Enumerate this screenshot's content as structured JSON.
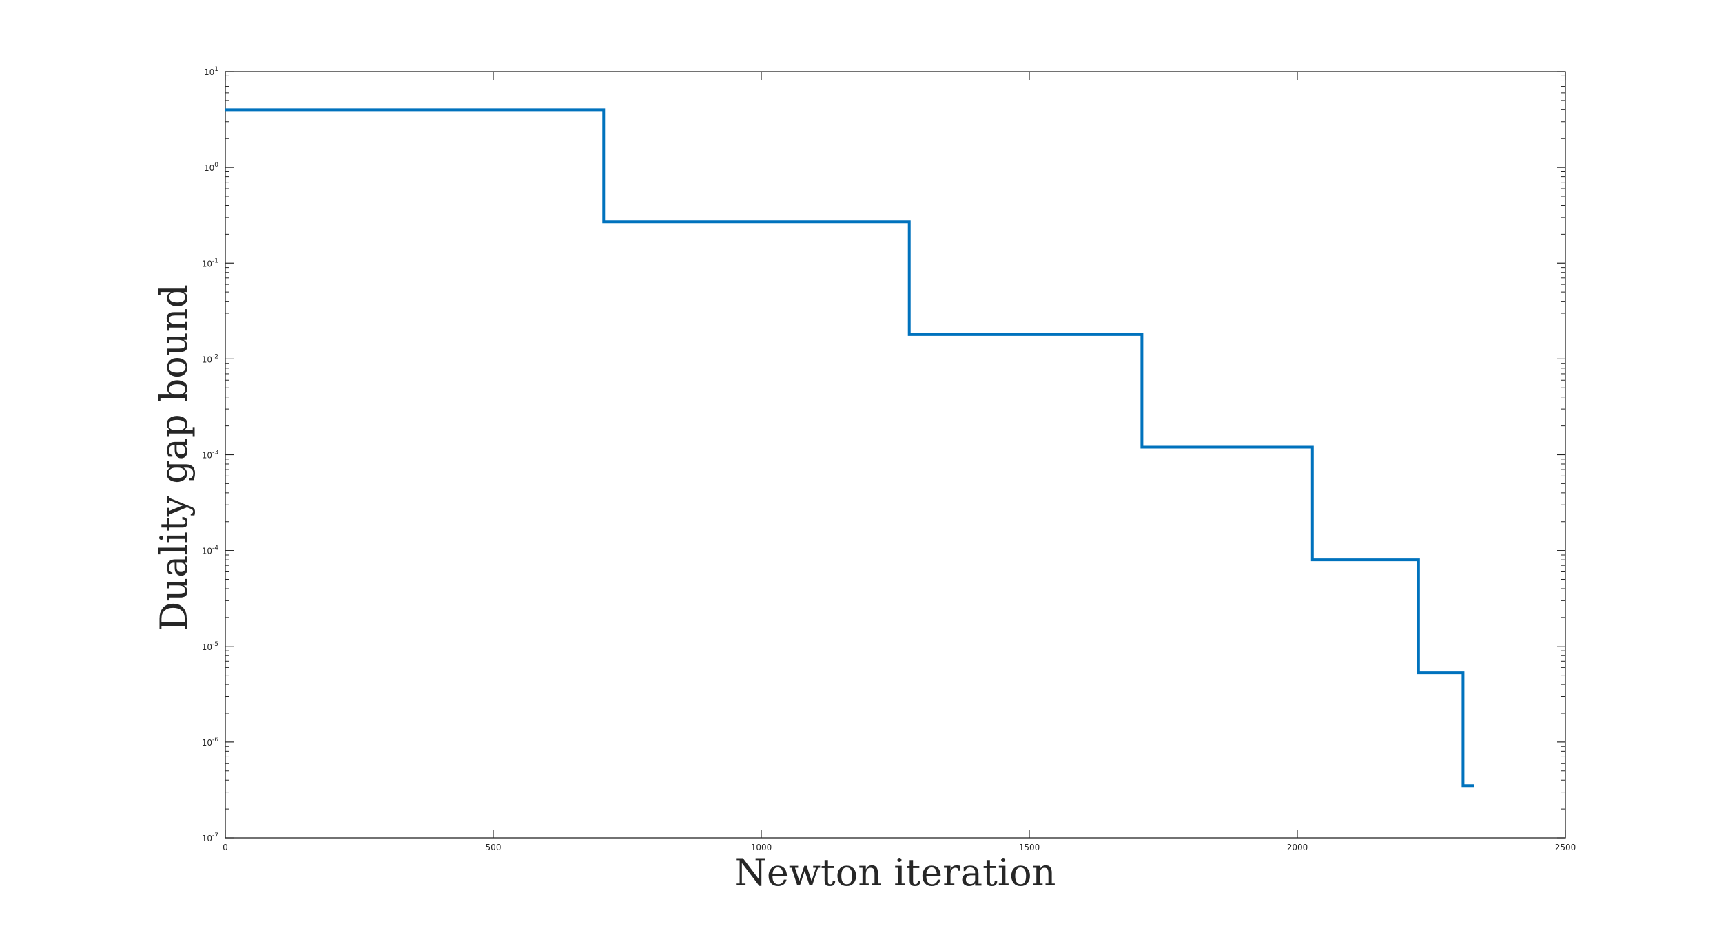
{
  "chart_data": {
    "type": "line",
    "title": "",
    "xlabel": "Newton iteration",
    "ylabel": "Duality gap bound",
    "xlim": [
      0,
      2500
    ],
    "ylim": [
      1e-07,
      10
    ],
    "yscale": "log",
    "grid": false,
    "x_ticks": [
      "0",
      "500",
      "1000",
      "1500",
      "2000",
      "2500"
    ],
    "y_ticks": [
      {
        "base": "10",
        "exp": "1"
      },
      {
        "base": "10",
        "exp": "0"
      },
      {
        "base": "10",
        "exp": "-1"
      },
      {
        "base": "10",
        "exp": "-2"
      },
      {
        "base": "10",
        "exp": "-3"
      },
      {
        "base": "10",
        "exp": "-4"
      },
      {
        "base": "10",
        "exp": "-5"
      },
      {
        "base": "10",
        "exp": "-6"
      },
      {
        "base": "10",
        "exp": "-7"
      }
    ],
    "series": [
      {
        "color": "#0072bd",
        "step": "post",
        "points": [
          {
            "x": 0,
            "y": 4.0
          },
          {
            "x": 706,
            "y": 0.27
          },
          {
            "x": 1276,
            "y": 0.018
          },
          {
            "x": 1710,
            "y": 0.0012
          },
          {
            "x": 2028,
            "y": 8e-05
          },
          {
            "x": 2226,
            "y": 5.3e-06
          },
          {
            "x": 2309,
            "y": 3.5e-07
          },
          {
            "x": 2330,
            "y": 3.5e-07
          }
        ]
      }
    ]
  }
}
